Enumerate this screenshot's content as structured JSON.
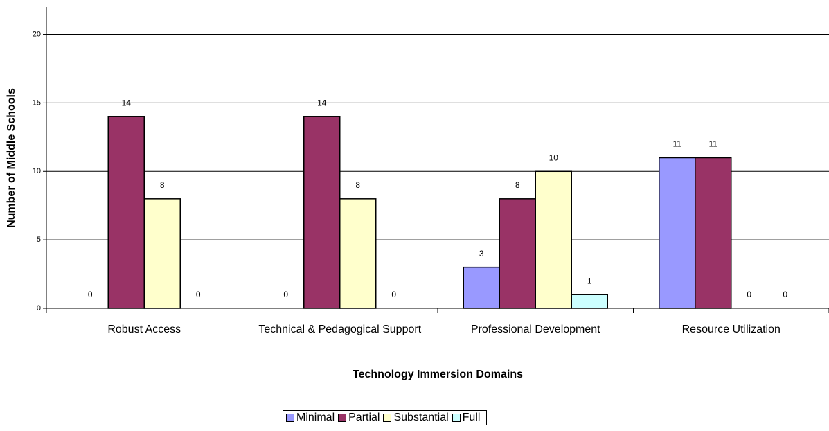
{
  "chart_data": {
    "type": "bar",
    "x_label": "Technology Immersion Domains",
    "y_label": "Number of Middle Schools",
    "categories": [
      "Robust Access",
      "Technical & Pedagogical Support",
      "Professional Development",
      "Resource Utilization"
    ],
    "series": [
      {
        "name": "Minimal",
        "color": "#9999ff",
        "values": [
          0,
          0,
          3,
          11
        ]
      },
      {
        "name": "Partial",
        "color": "#993366",
        "values": [
          14,
          14,
          8,
          11
        ]
      },
      {
        "name": "Substantial",
        "color": "#ffffcc",
        "values": [
          8,
          8,
          10,
          0
        ]
      },
      {
        "name": "Full",
        "color": "#ccffff",
        "values": [
          0,
          0,
          1,
          0
        ]
      }
    ],
    "ylim": [
      0,
      22
    ],
    "yticks": [
      0,
      5,
      10,
      15,
      20
    ],
    "grid": true,
    "legend": "bottom"
  }
}
